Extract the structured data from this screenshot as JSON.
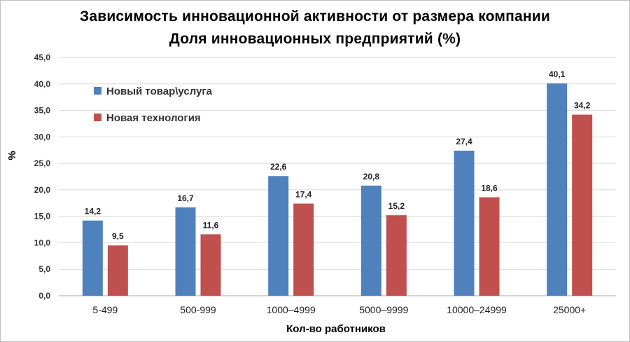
{
  "chart_data": {
    "type": "bar",
    "title": "Зависимость инновационной активности от размера компании",
    "subtitle": "Доля инновационных предприятий (%)",
    "xlabel": "Кол-во работников",
    "ylabel": "%",
    "ylim": [
      0,
      45
    ],
    "ytick_step": 5,
    "ytick_labels": [
      "0,0",
      "5,0",
      "10,0",
      "15,0",
      "20,0",
      "25,0",
      "30,0",
      "35,0",
      "40,0",
      "45,0"
    ],
    "grid": true,
    "legend_position": "top-left",
    "categories": [
      "5-499",
      "500-999",
      "1000–4999",
      "5000–9999",
      "10000–24999",
      "25000+"
    ],
    "series": [
      {
        "name": "Новый товар\\услуга",
        "color": "#4f81bd",
        "values": [
          14.2,
          16.7,
          22.6,
          20.8,
          27.4,
          40.1
        ],
        "labels": [
          "14,2",
          "16,7",
          "22,6",
          "20,8",
          "27,4",
          "40,1"
        ]
      },
      {
        "name": "Новая технология",
        "color": "#c0504d",
        "values": [
          9.5,
          11.6,
          17.4,
          15.2,
          18.6,
          34.2
        ],
        "labels": [
          "9,5",
          "11,6",
          "17,4",
          "15,2",
          "18,6",
          "34,2"
        ]
      }
    ]
  }
}
